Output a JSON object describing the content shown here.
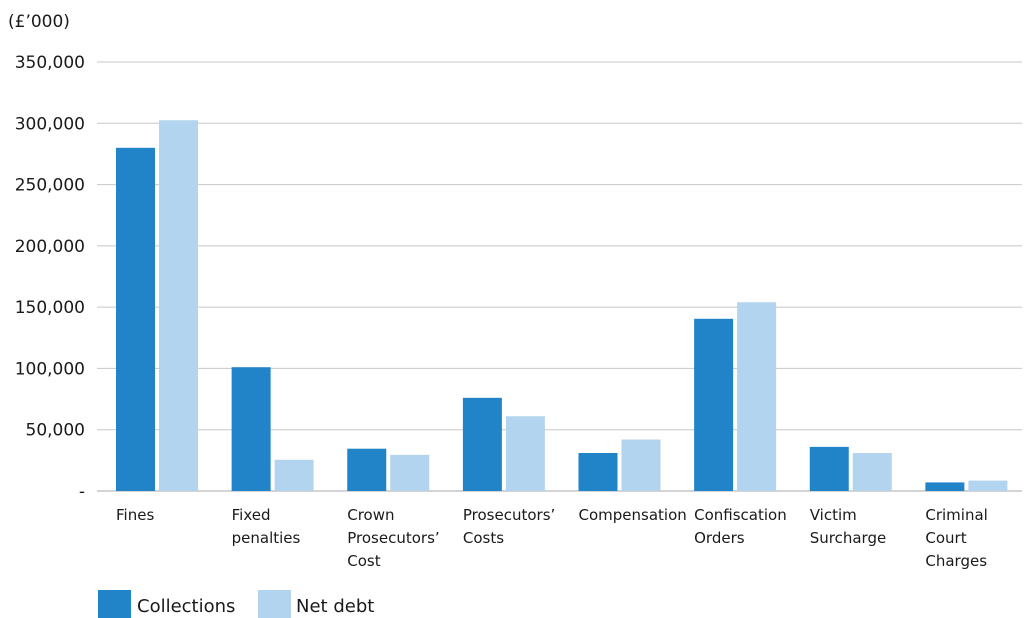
{
  "chart_data": {
    "type": "bar",
    "unit_label": "(£’000)",
    "categories": [
      [
        "Fines"
      ],
      [
        "Fixed",
        "penalties"
      ],
      [
        "Crown",
        "Prosecutors’",
        "Cost"
      ],
      [
        "Prosecutors’",
        "Costs"
      ],
      [
        "Compensation"
      ],
      [
        "Confiscation",
        "Orders"
      ],
      [
        "Victim",
        "Surcharge"
      ],
      [
        "Criminal",
        "Court",
        "Charges"
      ]
    ],
    "series": [
      {
        "name": "Collections",
        "color": "#2284c8",
        "values": [
          280000,
          101000,
          34500,
          76000,
          31000,
          140500,
          36000,
          7000
        ]
      },
      {
        "name": "Net debt",
        "color": "#b3d4ef",
        "values": [
          302500,
          25500,
          29500,
          61000,
          42000,
          154000,
          31000,
          8500
        ]
      }
    ],
    "ylim": [
      0,
      350000
    ],
    "yticks": [
      {
        "value": 0,
        "label": "-"
      },
      {
        "value": 50000,
        "label": "50,000"
      },
      {
        "value": 100000,
        "label": "100,000"
      },
      {
        "value": 150000,
        "label": "150,000"
      },
      {
        "value": 200000,
        "label": "200,000"
      },
      {
        "value": 250000,
        "label": "250,000"
      },
      {
        "value": 300000,
        "label": "300,000"
      },
      {
        "value": 350000,
        "label": "350,000"
      }
    ],
    "grid": true,
    "legend_position": "bottom-left",
    "title": "",
    "xlabel": "",
    "ylabel": ""
  }
}
